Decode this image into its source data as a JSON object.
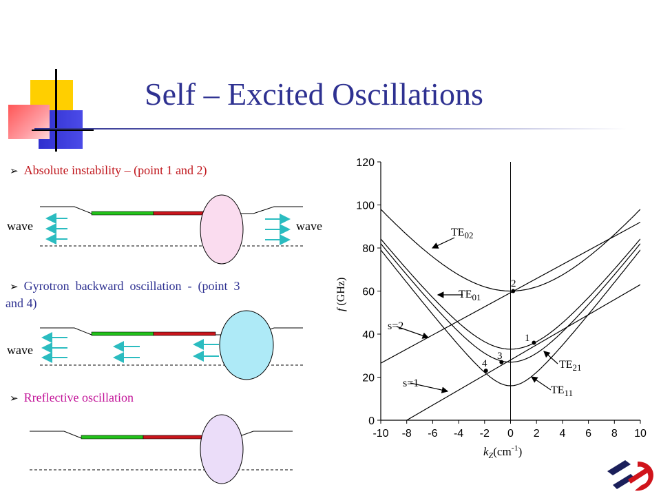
{
  "slide": {
    "title": "Self – Excited Oscillations",
    "bullets": [
      {
        "text": "Absolute instability – (point 1 and 2)",
        "color": "#c0161c"
      },
      {
        "text_line1": "Gyrotron  backward  oscillation  -  (point  3",
        "text_line2": "and 4)",
        "color": "#2e3191"
      },
      {
        "text": "Rreflective oscillation",
        "color": "#c21398"
      }
    ],
    "wave_labels": [
      "wave",
      "wave",
      "wave"
    ],
    "colors": {
      "title": "#2e3191",
      "green_section": "#22c21a",
      "red_section": "#c9151c",
      "ellipse_1": "#fadcef",
      "ellipse_2": "#aeeaf7",
      "ellipse_3": "#ebddf9",
      "arrows": "#2bbcc0"
    },
    "icons": [
      "decorative-squares-icon",
      "logo-icon"
    ]
  },
  "chart_data": {
    "type": "line",
    "title": "",
    "xlabel_main": "k",
    "xlabel_sub": "Z",
    "xlabel_unit": "(cm",
    "xlabel_sup": "-1",
    "xlabel_close": ")",
    "ylabel_f": "f",
    "ylabel_unit": "(GHz)",
    "xlim": [
      -10,
      10
    ],
    "ylim": [
      0,
      120
    ],
    "xticks": [
      "-10",
      "-8",
      "-6",
      "-4",
      "-2",
      "0",
      "2",
      "4",
      "6",
      "8",
      "10"
    ],
    "yticks": [
      "0",
      "20",
      "40",
      "60",
      "80",
      "100",
      "120"
    ],
    "series": [
      {
        "name": "TE02",
        "label_main": "TE",
        "label_sub": "02",
        "type": "hyperbola",
        "fc": 60
      },
      {
        "name": "TE01",
        "label_main": "TE",
        "label_sub": "01",
        "type": "hyperbola",
        "fc": 33
      },
      {
        "name": "TE21",
        "label_main": "TE",
        "label_sub": "21",
        "type": "hyperbola",
        "fc": 27
      },
      {
        "name": "TE11",
        "label_main": "TE",
        "label_sub": "11",
        "type": "hyperbola",
        "fc": 16
      },
      {
        "name": "s=2",
        "label": "s=2",
        "type": "beam",
        "points": [
          [
            -10,
            26.5
          ],
          [
            10,
            92
          ]
        ]
      },
      {
        "name": "s=1",
        "label": "s=1",
        "type": "beam",
        "points": [
          [
            -10,
            -7
          ],
          [
            10,
            63
          ]
        ]
      }
    ],
    "points": [
      {
        "label": "1",
        "x": 1.8,
        "y": 36
      },
      {
        "label": "2",
        "x": 0.2,
        "y": 60
      },
      {
        "label": "3",
        "x": -0.7,
        "y": 27
      },
      {
        "label": "4",
        "x": -1.9,
        "y": 23
      }
    ]
  }
}
